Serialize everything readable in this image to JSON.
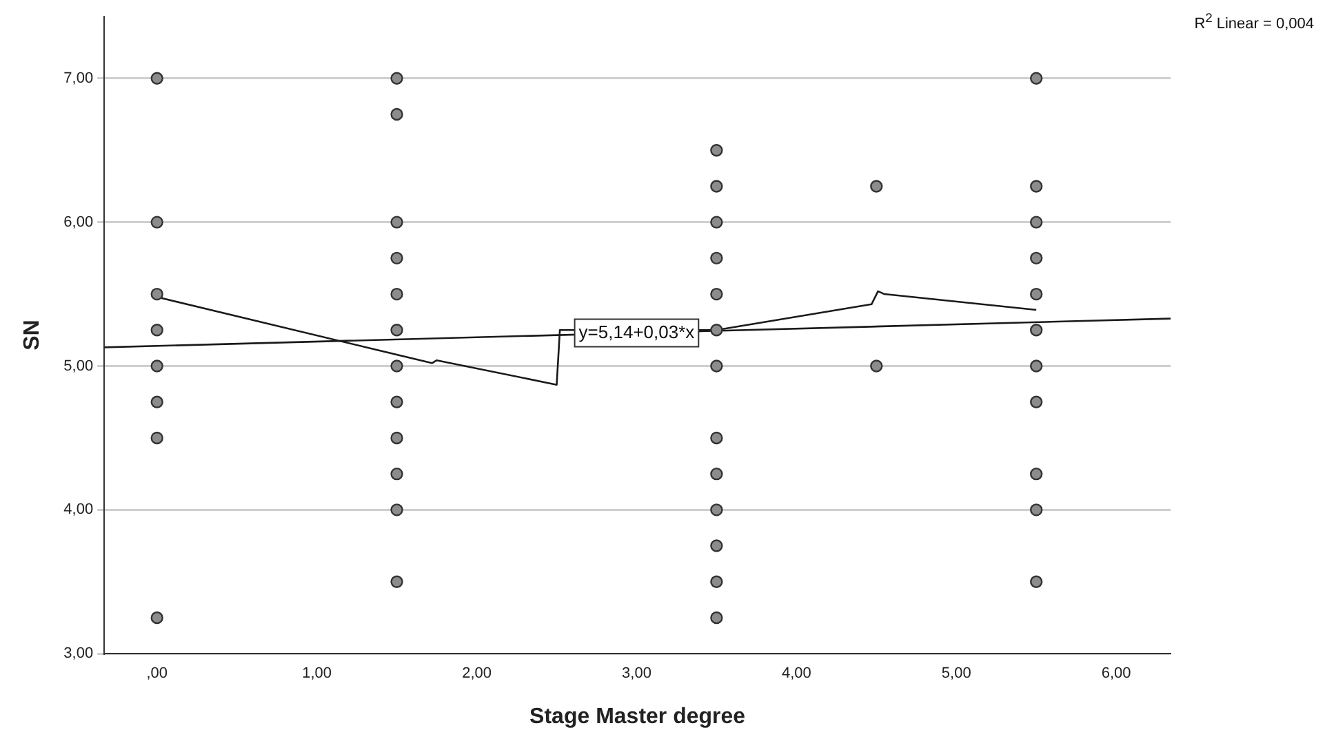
{
  "chart_data": {
    "type": "scatter",
    "xlabel": "Stage Master degree",
    "ylabel": "SN",
    "annotations": [
      {
        "text": "y=5,14+0,03*x",
        "x": 3.0,
        "y": 5.23
      },
      "R$^{2}$ Linear = 0,004"
    ],
    "xlim": [
      -0.33,
      6.34
    ],
    "xticks": [
      {
        "value": 0,
        "label": ",00"
      },
      {
        "value": 1,
        "label": "1,00"
      },
      {
        "value": 2,
        "label": "2,00"
      },
      {
        "value": 3,
        "label": "3,00"
      },
      {
        "value": 4,
        "label": "4,00"
      },
      {
        "value": 5,
        "label": "5,00"
      },
      {
        "value": 6,
        "label": "6,00"
      }
    ],
    "ylim": [
      3,
      7.43
    ],
    "yticks": [
      {
        "value": 3,
        "label": "3,00"
      },
      {
        "value": 4,
        "label": "4,00"
      },
      {
        "value": 5,
        "label": "5,00"
      },
      {
        "value": 6,
        "label": "6,00"
      },
      {
        "value": 7,
        "label": "7,00"
      }
    ],
    "grid": "y",
    "legend": false,
    "series": [
      {
        "marker": "circle",
        "color": "#8c8c8c",
        "x": [
          0,
          0,
          0,
          0,
          0,
          0,
          0,
          0,
          1.5,
          1.5,
          1.5,
          1.5,
          1.5,
          1.5,
          1.5,
          1.5,
          1.5,
          1.5,
          1.5,
          1.5,
          3.5,
          3.5,
          3.5,
          3.5,
          3.5,
          3.5,
          3.5,
          3.5,
          3.5,
          3.5,
          3.5,
          3.5,
          3.5,
          4.5,
          4.5,
          5.5,
          5.5,
          5.5,
          5.5,
          5.5,
          5.5,
          5.5,
          5.5,
          5.5,
          5.5,
          5.5
        ],
        "values": [
          7,
          6,
          5.5,
          5.25,
          5,
          4.75,
          4.5,
          3.25,
          7,
          6.75,
          6,
          5.75,
          5.5,
          5.25,
          5,
          4.75,
          4.5,
          4.25,
          4,
          3.5,
          6.5,
          6.25,
          6,
          5.75,
          5.5,
          5.25,
          5,
          4.5,
          4.25,
          4,
          3.75,
          3.5,
          3.25,
          6.25,
          5,
          7,
          6.25,
          6,
          5.75,
          5.5,
          5.25,
          5,
          4.75,
          4.25,
          4,
          3.5
        ]
      },
      {
        "type": "line",
        "marker": "none",
        "color": "#1a1a1a",
        "x": [
          -0.33,
          6.34
        ],
        "values": [
          5.13,
          5.33
        ]
      },
      {
        "type": "line",
        "marker": "none",
        "color": "#1a1a1a",
        "x": [
          0,
          1.72,
          1.75,
          2.5,
          2.52,
          3.5,
          4.47,
          4.51,
          4.55,
          5.5
        ],
        "values": [
          5.48,
          5.02,
          5.04,
          4.87,
          5.25,
          5.25,
          5.43,
          5.52,
          5.5,
          5.39
        ]
      }
    ]
  }
}
